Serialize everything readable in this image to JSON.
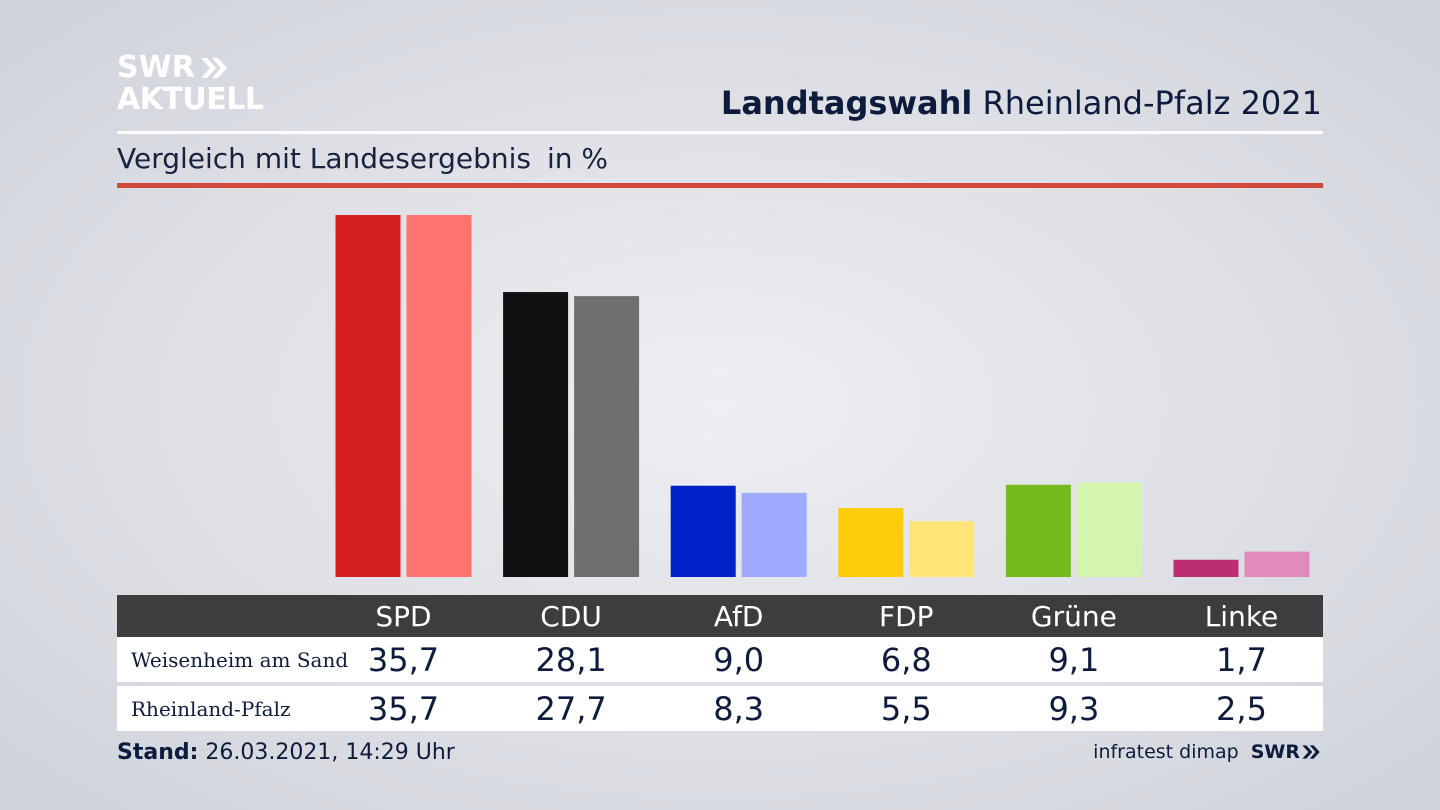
{
  "logo": {
    "line1": "SWR",
    "line2": "AKTUELL"
  },
  "header": {
    "title_bold": "Landtagswahl",
    "title_rest": "Rheinland-Pfalz 2021"
  },
  "subtitle": {
    "text": "Vergleich mit Landesergebnis",
    "unit": "in %"
  },
  "colors": {
    "accent_rule": "#cf4a3a",
    "table_header": "#3d3d3d"
  },
  "chart_data": {
    "type": "bar",
    "categories": [
      "SPD",
      "CDU",
      "AfD",
      "FDP",
      "Grüne",
      "Linke"
    ],
    "series": [
      {
        "name": "Weisenheim am Sand",
        "values": [
          35.7,
          28.1,
          9.0,
          6.8,
          9.1,
          1.7
        ],
        "colors": [
          "#d61f20",
          "#111111",
          "#0020c8",
          "#ffcc0a",
          "#76bb1e",
          "#bd2d74"
        ]
      },
      {
        "name": "Rheinland-Pfalz",
        "values": [
          35.7,
          27.7,
          8.3,
          5.5,
          9.3,
          2.5
        ],
        "colors": [
          "#ff736e",
          "#706f6d",
          "#9eaafd",
          "#ffe477",
          "#d3f5ad",
          "#e08bbb"
        ]
      }
    ],
    "ylim": [
      0,
      35.7
    ],
    "grid": false,
    "legend": "table-below"
  },
  "table": {
    "rows": [
      {
        "label": "Weisenheim am Sand",
        "values": [
          "35,7",
          "28,1",
          "9,0",
          "6,8",
          "9,1",
          "1,7"
        ]
      },
      {
        "label": "Rheinland-Pfalz",
        "values": [
          "35,7",
          "27,7",
          "8,3",
          "5,5",
          "9,3",
          "2,5"
        ]
      }
    ]
  },
  "footer": {
    "stand_label": "Stand:",
    "stand_value": "26.03.2021, 14:29 Uhr",
    "source": "infratest dimap",
    "brand": "SWR"
  }
}
